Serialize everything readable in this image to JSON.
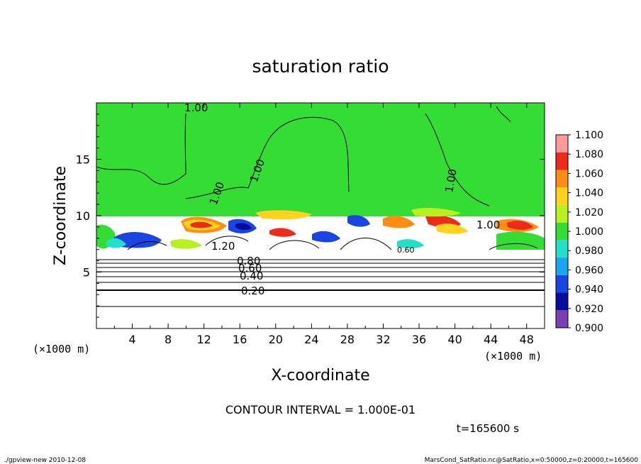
{
  "chart_data": {
    "type": "heatmap",
    "title": "saturation ratio",
    "xlabel": "X-coordinate",
    "ylabel": "Z-coordinate",
    "x_unit_label": "(×1000 m)",
    "xlim": [
      0,
      50
    ],
    "ylim": [
      0,
      20
    ],
    "x_ticks": [
      4,
      8,
      12,
      16,
      20,
      24,
      28,
      32,
      36,
      40,
      44,
      48
    ],
    "y_ticks": [
      5,
      10,
      15
    ],
    "colorbar": {
      "levels": [
        "0.900",
        "0.920",
        "0.940",
        "0.960",
        "0.980",
        "1.000",
        "1.020",
        "1.040",
        "1.060",
        "1.080",
        "1.100"
      ],
      "colors": [
        "#7b3fb0",
        "#0a0aa0",
        "#1a45e0",
        "#1aa6ee",
        "#23e0c8",
        "#33dd33",
        "#b8f020",
        "#ffd21e",
        "#ff8c14",
        "#ee2b1b",
        "#ff9b9b"
      ]
    },
    "contour_labels": [
      "1.00",
      "1.00",
      "1.00",
      "1.00",
      "1.00",
      "1.20",
      "0.80",
      "0.60",
      "0.40",
      "0.20",
      "0.60"
    ],
    "contour_interval_text": "CONTOUR INTERVAL = 1.000E-01",
    "time_text": "t=165600 s",
    "grid": false,
    "legend": "right"
  },
  "footer": {
    "left": "./gpview-new  2010-12-08",
    "right": "MarsCond_SatRatio.nc@SatRatio,x=0:50000,z=0:20000,t=165600"
  }
}
